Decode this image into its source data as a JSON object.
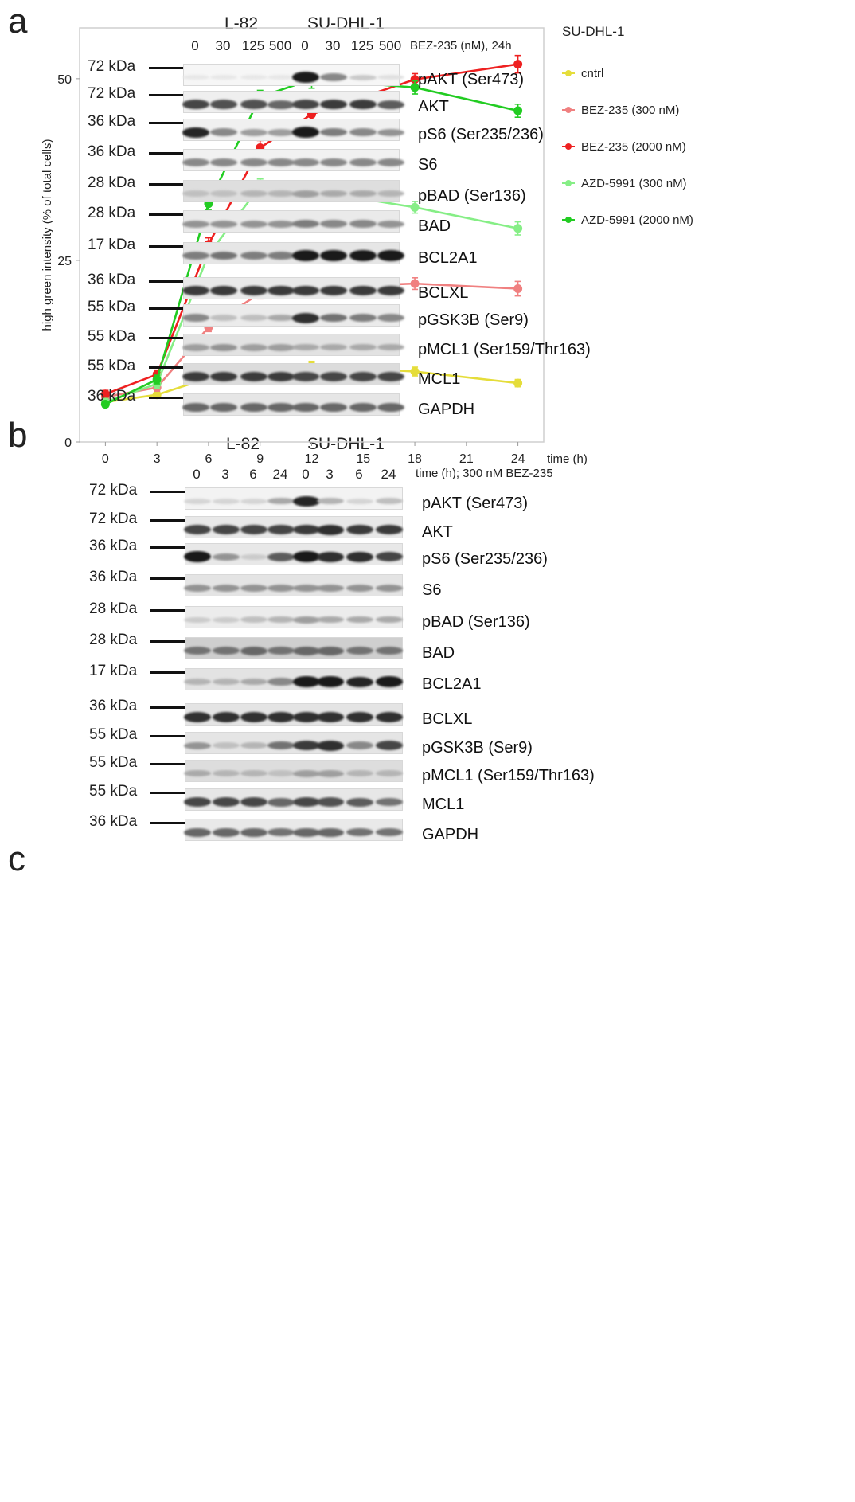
{
  "panel_a": {
    "letter": "a",
    "cell_lines": [
      "L-82",
      "SU-DHL-1"
    ],
    "lanes": [
      "0",
      "30",
      "125",
      "500",
      "0",
      "30",
      "125",
      "500"
    ],
    "condition": "BEZ-235 (nM), 24h",
    "blots": [
      {
        "mw": "72 kDa",
        "protein": "pAKT (Ser473)",
        "bg": "#f6f6f6",
        "intensity": [
          0.02,
          0.02,
          0.02,
          0.02,
          0.95,
          0.45,
          0.15,
          0.05
        ]
      },
      {
        "mw": "72 kDa",
        "protein": "AKT",
        "bg": "#efefef",
        "intensity": [
          0.75,
          0.7,
          0.7,
          0.6,
          0.75,
          0.8,
          0.8,
          0.65
        ]
      },
      {
        "mw": "36 kDa",
        "protein": "pS6 (Ser235/236)",
        "bg": "#f0f0f0",
        "intensity": [
          0.9,
          0.45,
          0.35,
          0.35,
          0.95,
          0.5,
          0.45,
          0.4
        ]
      },
      {
        "mw": "36 kDa",
        "protein": "S6",
        "bg": "#f1f1f1",
        "intensity": [
          0.45,
          0.45,
          0.45,
          0.45,
          0.45,
          0.45,
          0.45,
          0.45
        ]
      },
      {
        "mw": "28 kDa",
        "protein": "pBAD (Ser136)",
        "bg": "#dedede",
        "intensity": [
          0.2,
          0.2,
          0.25,
          0.25,
          0.35,
          0.3,
          0.3,
          0.25
        ]
      },
      {
        "mw": "28 kDa",
        "protein": "BAD",
        "bg": "#eaeaea",
        "intensity": [
          0.4,
          0.4,
          0.4,
          0.4,
          0.5,
          0.45,
          0.45,
          0.4
        ]
      },
      {
        "mw": "17 kDa",
        "protein": "BCL2A1",
        "bg": "#e6e6e6",
        "intensity": [
          0.5,
          0.55,
          0.5,
          0.5,
          0.95,
          0.95,
          0.95,
          0.95
        ]
      },
      {
        "mw": "36 kDa",
        "protein": "BCLXL",
        "bg": "#e9e9e9",
        "intensity": [
          0.8,
          0.8,
          0.8,
          0.8,
          0.8,
          0.8,
          0.8,
          0.8
        ]
      },
      {
        "mw": "55 kDa",
        "protein": "pGSK3B (Ser9)",
        "bg": "#ebebeb",
        "intensity": [
          0.45,
          0.2,
          0.2,
          0.3,
          0.85,
          0.55,
          0.5,
          0.45
        ]
      },
      {
        "mw": "55 kDa",
        "protein": "pMCL1 (Ser159/Thr163)",
        "bg": "#e2e2e2",
        "intensity": [
          0.35,
          0.4,
          0.35,
          0.35,
          0.3,
          0.3,
          0.3,
          0.3
        ]
      },
      {
        "mw": "55 kDa",
        "protein": "MCL1",
        "bg": "#dcdcdc",
        "intensity": [
          0.8,
          0.8,
          0.8,
          0.8,
          0.75,
          0.75,
          0.75,
          0.75
        ]
      },
      {
        "mw": "36 kDa",
        "protein": "GAPDH",
        "bg": "#e6e6e6",
        "intensity": [
          0.6,
          0.6,
          0.6,
          0.6,
          0.6,
          0.6,
          0.6,
          0.6
        ]
      }
    ]
  },
  "panel_b": {
    "letter": "b",
    "cell_lines": [
      "L-82",
      "SU-DHL-1"
    ],
    "lanes": [
      "0",
      "3",
      "6",
      "24",
      "0",
      "3",
      "6",
      "24"
    ],
    "condition": "time (h); 300 nM BEZ-235",
    "blots": [
      {
        "mw": "72 kDa",
        "protein": "pAKT (Ser473)",
        "bg": "#f3f3f3",
        "intensity": [
          0.1,
          0.1,
          0.1,
          0.3,
          0.9,
          0.25,
          0.1,
          0.2
        ]
      },
      {
        "mw": "72 kDa",
        "protein": "AKT",
        "bg": "#e8e8e8",
        "intensity": [
          0.75,
          0.75,
          0.75,
          0.75,
          0.8,
          0.85,
          0.8,
          0.8
        ]
      },
      {
        "mw": "36 kDa",
        "protein": "pS6 (Ser235/236)",
        "bg": "#e8e8e8",
        "intensity": [
          0.95,
          0.4,
          0.15,
          0.65,
          0.95,
          0.85,
          0.85,
          0.75
        ]
      },
      {
        "mw": "36 kDa",
        "protein": "S6",
        "bg": "#e4e4e4",
        "intensity": [
          0.4,
          0.4,
          0.4,
          0.4,
          0.4,
          0.4,
          0.4,
          0.4
        ]
      },
      {
        "mw": "28 kDa",
        "protein": "pBAD (Ser136)",
        "bg": "#ececec",
        "intensity": [
          0.15,
          0.15,
          0.2,
          0.25,
          0.35,
          0.3,
          0.3,
          0.3
        ]
      },
      {
        "mw": "28 kDa",
        "protein": "BAD",
        "bg": "#cfcfcf",
        "intensity": [
          0.55,
          0.55,
          0.6,
          0.55,
          0.6,
          0.6,
          0.55,
          0.55
        ]
      },
      {
        "mw": "17 kDa",
        "protein": "BCL2A1",
        "bg": "#e3e3e3",
        "intensity": [
          0.25,
          0.25,
          0.3,
          0.45,
          0.95,
          0.95,
          0.9,
          0.95
        ]
      },
      {
        "mw": "36 kDa",
        "protein": "BCLXL",
        "bg": "#e4e4e4",
        "intensity": [
          0.85,
          0.85,
          0.85,
          0.85,
          0.85,
          0.85,
          0.85,
          0.85
        ]
      },
      {
        "mw": "55 kDa",
        "protein": "pGSK3B (Ser9)",
        "bg": "#e5e5e5",
        "intensity": [
          0.4,
          0.2,
          0.25,
          0.55,
          0.8,
          0.85,
          0.45,
          0.75
        ]
      },
      {
        "mw": "55 kDa",
        "protein": "pMCL1 (Ser159/Thr163)",
        "bg": "#dddddd",
        "intensity": [
          0.3,
          0.25,
          0.25,
          0.2,
          0.35,
          0.35,
          0.25,
          0.25
        ]
      },
      {
        "mw": "55 kDa",
        "protein": "MCL1",
        "bg": "#e7e7e7",
        "intensity": [
          0.75,
          0.75,
          0.75,
          0.6,
          0.75,
          0.7,
          0.65,
          0.55
        ]
      },
      {
        "mw": "36 kDa",
        "protein": "GAPDH",
        "bg": "#e9e9e9",
        "intensity": [
          0.6,
          0.6,
          0.6,
          0.55,
          0.6,
          0.6,
          0.55,
          0.55
        ]
      }
    ]
  },
  "panel_c": {
    "letter": "c",
    "legend_title": "SU-DHL-1",
    "chart_data": {
      "type": "line",
      "title": "",
      "xlabel": "time (h)",
      "ylabel": "high green intensity (% of total cells)",
      "x": [
        0,
        3,
        6,
        9,
        12,
        18,
        24
      ],
      "xticks": [
        0,
        3,
        6,
        9,
        12,
        15,
        18,
        21,
        24
      ],
      "yticks": [
        0,
        25,
        50
      ],
      "xlim": [
        -1.5,
        25.5
      ],
      "ylim": [
        0,
        57
      ],
      "grid": false,
      "legend_position": "right",
      "series": [
        {
          "name": "cntrl",
          "color": "#e5dd3a",
          "values": [
            5.5,
            6.5,
            8.8,
            10.1,
            10.5,
            9.7,
            8.1
          ],
          "errors": [
            0.4,
            0.4,
            0.5,
            0.6,
            0.6,
            0.6,
            0.5
          ]
        },
        {
          "name": "BEZ-235 (300 nM)",
          "color": "#f08080",
          "values": [
            6.2,
            7.5,
            15.8,
            20.5,
            21.3,
            21.8,
            21.1
          ],
          "errors": [
            0.5,
            0.5,
            0.6,
            0.8,
            0.9,
            0.8,
            1.0
          ]
        },
        {
          "name": "BEZ-235 (2000 nM)",
          "color": "#ee2020",
          "values": [
            6.6,
            9.3,
            27.2,
            40.5,
            45.1,
            49.9,
            52.0
          ],
          "errors": [
            0.5,
            0.6,
            0.9,
            1.0,
            1.1,
            0.8,
            1.2
          ]
        },
        {
          "name": "AZD-5991 (300 nM)",
          "color": "#86ee86",
          "values": [
            5.5,
            8.0,
            25.8,
            35.2,
            34.6,
            32.3,
            29.4
          ],
          "errors": [
            0.5,
            0.6,
            0.8,
            1.0,
            1.3,
            0.8,
            0.9
          ]
        },
        {
          "name": "AZD-5991 (2000 nM)",
          "color": "#22cc22",
          "values": [
            5.2,
            8.6,
            32.8,
            47.5,
            49.9,
            48.8,
            45.6
          ],
          "errors": [
            0.4,
            0.6,
            0.8,
            0.9,
            1.2,
            0.9,
            0.9
          ]
        }
      ]
    }
  }
}
